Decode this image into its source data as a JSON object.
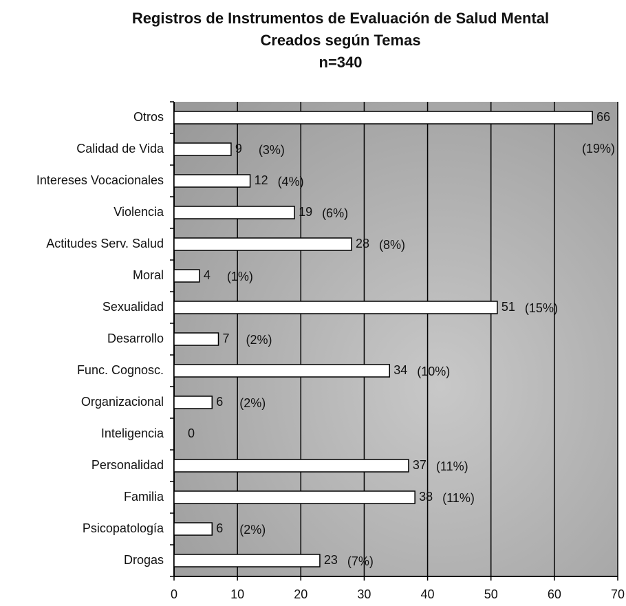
{
  "chart_data": {
    "type": "hbar",
    "title": "Registros de Instrumentos de Evaluación de Salud Mental",
    "subtitle": "Creados según Temas",
    "sample_size": "n=340",
    "categories": [
      "Otros",
      "Calidad de Vida",
      "Intereses Vocacionales",
      "Violencia",
      "Actitudes Serv. Salud",
      "Moral",
      "Sexualidad",
      "Desarrollo",
      "Func. Cognosc.",
      "Organizacional",
      "Inteligencia",
      "Personalidad",
      "Familia",
      "Psicopatología",
      "Drogas"
    ],
    "values": [
      66,
      9,
      12,
      19,
      28,
      4,
      51,
      7,
      34,
      6,
      0,
      37,
      38,
      6,
      23
    ],
    "percent_labels": [
      "(19%)",
      "(3%)",
      "(4%)",
      "(6%)",
      "(8%)",
      "(1%)",
      "(15%)",
      "(2%)",
      "(10%)",
      "(2%)",
      null,
      "(11%)",
      "(11%)",
      "(2%)",
      "(7%)"
    ],
    "color": "#ffffff",
    "xlim": [
      0,
      70
    ],
    "xticks": [
      0,
      10,
      20,
      30,
      40,
      50,
      60,
      70
    ],
    "grid": true
  }
}
